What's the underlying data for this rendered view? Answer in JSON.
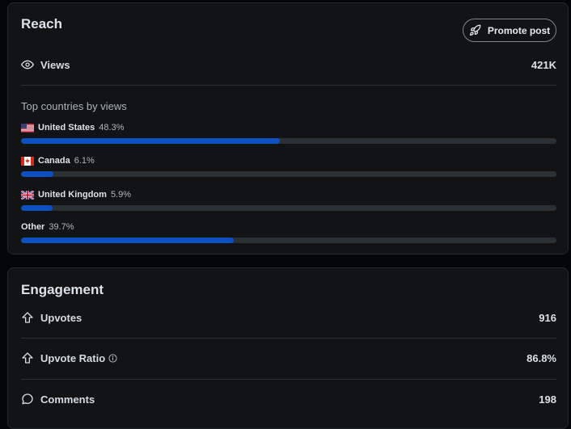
{
  "reach": {
    "title": "Reach",
    "promote_label": "Promote post",
    "views_label": "Views",
    "views_value": "421K",
    "countries_label": "Top countries by views",
    "countries": [
      {
        "name": "United States",
        "pct": "48.3%",
        "share": 0.483,
        "flag": "us-flag-icon"
      },
      {
        "name": "Canada",
        "pct": "6.1%",
        "share": 0.061,
        "flag": "ca-flag-icon"
      },
      {
        "name": "United Kingdom",
        "pct": "5.9%",
        "share": 0.059,
        "flag": "uk-flag-icon"
      },
      {
        "name": "Other",
        "pct": "39.7%",
        "share": 0.397,
        "flag": ""
      }
    ],
    "bar_color": "#0f4fc4"
  },
  "engagement": {
    "title": "Engagement",
    "rows": [
      {
        "label": "Upvotes",
        "value": "916",
        "icon": "upvote-icon"
      },
      {
        "label": "Upvote Ratio",
        "value": "86.8%",
        "icon": "upvote-icon"
      },
      {
        "label": "Comments",
        "value": "198",
        "icon": "comment-icon"
      }
    ]
  }
}
